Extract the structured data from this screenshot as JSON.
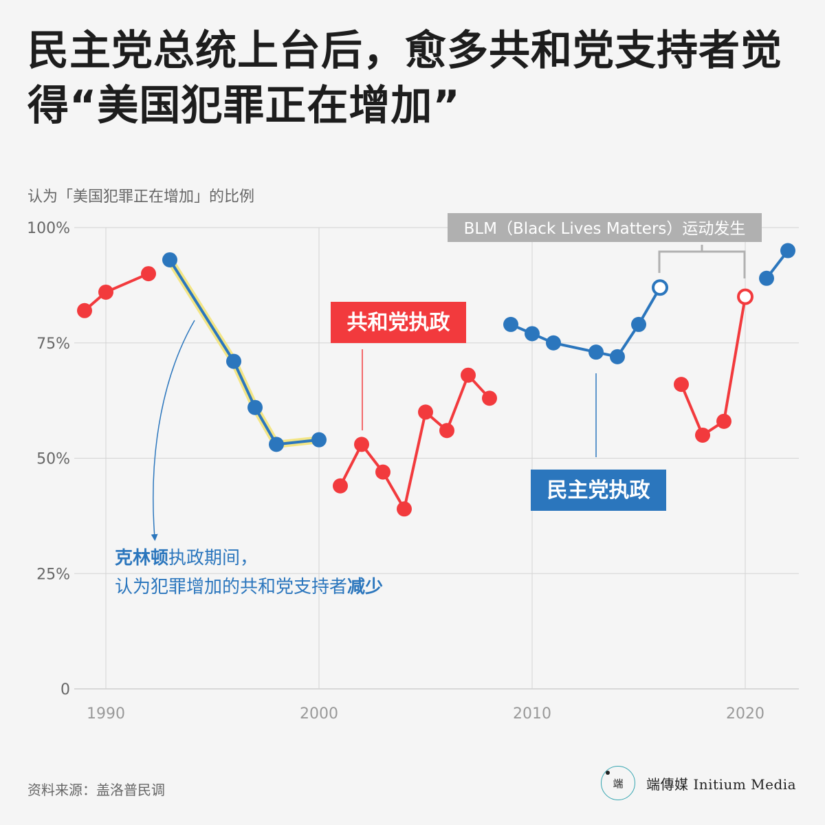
{
  "title": "民主党总统上台后，愈多共和党支持者觉得“美国犯罪正在增加”",
  "subtitle": "认为「美国犯罪正在增加」的比例",
  "source": "资料来源：盖洛普民调",
  "brand": {
    "logo_text": "端",
    "name": "端傳媒 Initium Media"
  },
  "colors": {
    "republican": "#f23a3d",
    "democrat": "#2b76bd",
    "highlight": "#f3e585",
    "blm_box": "#b0b0b0"
  },
  "annotations": {
    "republican_rule": "共和党执政",
    "democrat_rule": "民主党执政",
    "blm": "BLM（Black Lives Matters）运动发生",
    "clinton_line1_bold": "克林顿",
    "clinton_line1_rest": "执政期间，",
    "clinton_line2_rest": "认为犯罪增加的共和党支持者",
    "clinton_line2_bold": "减少"
  },
  "chart_data": {
    "type": "line",
    "ylim": [
      0,
      100
    ],
    "xlim": [
      1989,
      2022
    ],
    "yticks": [
      0,
      25,
      50,
      75,
      100
    ],
    "ytick_labels": [
      "0",
      "25%",
      "50%",
      "75%",
      "100%"
    ],
    "xticks": [
      1990,
      2000,
      2010,
      2020
    ],
    "xtick_labels": [
      "1990",
      "2000",
      "2010",
      "2020"
    ],
    "grid": true,
    "segments": [
      {
        "party": "republican",
        "x": [
          1989,
          1990,
          1992
        ],
        "y": [
          82,
          86,
          90
        ]
      },
      {
        "party": "democrat",
        "x": [
          1993,
          1996,
          1997,
          1998,
          2000
        ],
        "y": [
          93,
          71,
          61,
          53,
          54
        ],
        "highlight": true
      },
      {
        "party": "republican",
        "x": [
          2001,
          2002,
          2003,
          2004,
          2005,
          2006,
          2007,
          2008
        ],
        "y": [
          44,
          53,
          47,
          39,
          60,
          56,
          68,
          63
        ]
      },
      {
        "party": "democrat",
        "x": [
          2009,
          2010,
          2011,
          2013,
          2014,
          2015,
          2016
        ],
        "y": [
          79,
          77,
          75,
          73,
          72,
          79,
          87
        ]
      },
      {
        "party": "republican",
        "x": [
          2017,
          2018,
          2019,
          2020
        ],
        "y": [
          66,
          55,
          58,
          85
        ]
      },
      {
        "party": "democrat",
        "x": [
          2021,
          2022
        ],
        "y": [
          89,
          95
        ]
      }
    ],
    "hollow_points": [
      {
        "party": "democrat",
        "x": 2016
      },
      {
        "party": "republican",
        "x": 2020
      }
    ]
  }
}
